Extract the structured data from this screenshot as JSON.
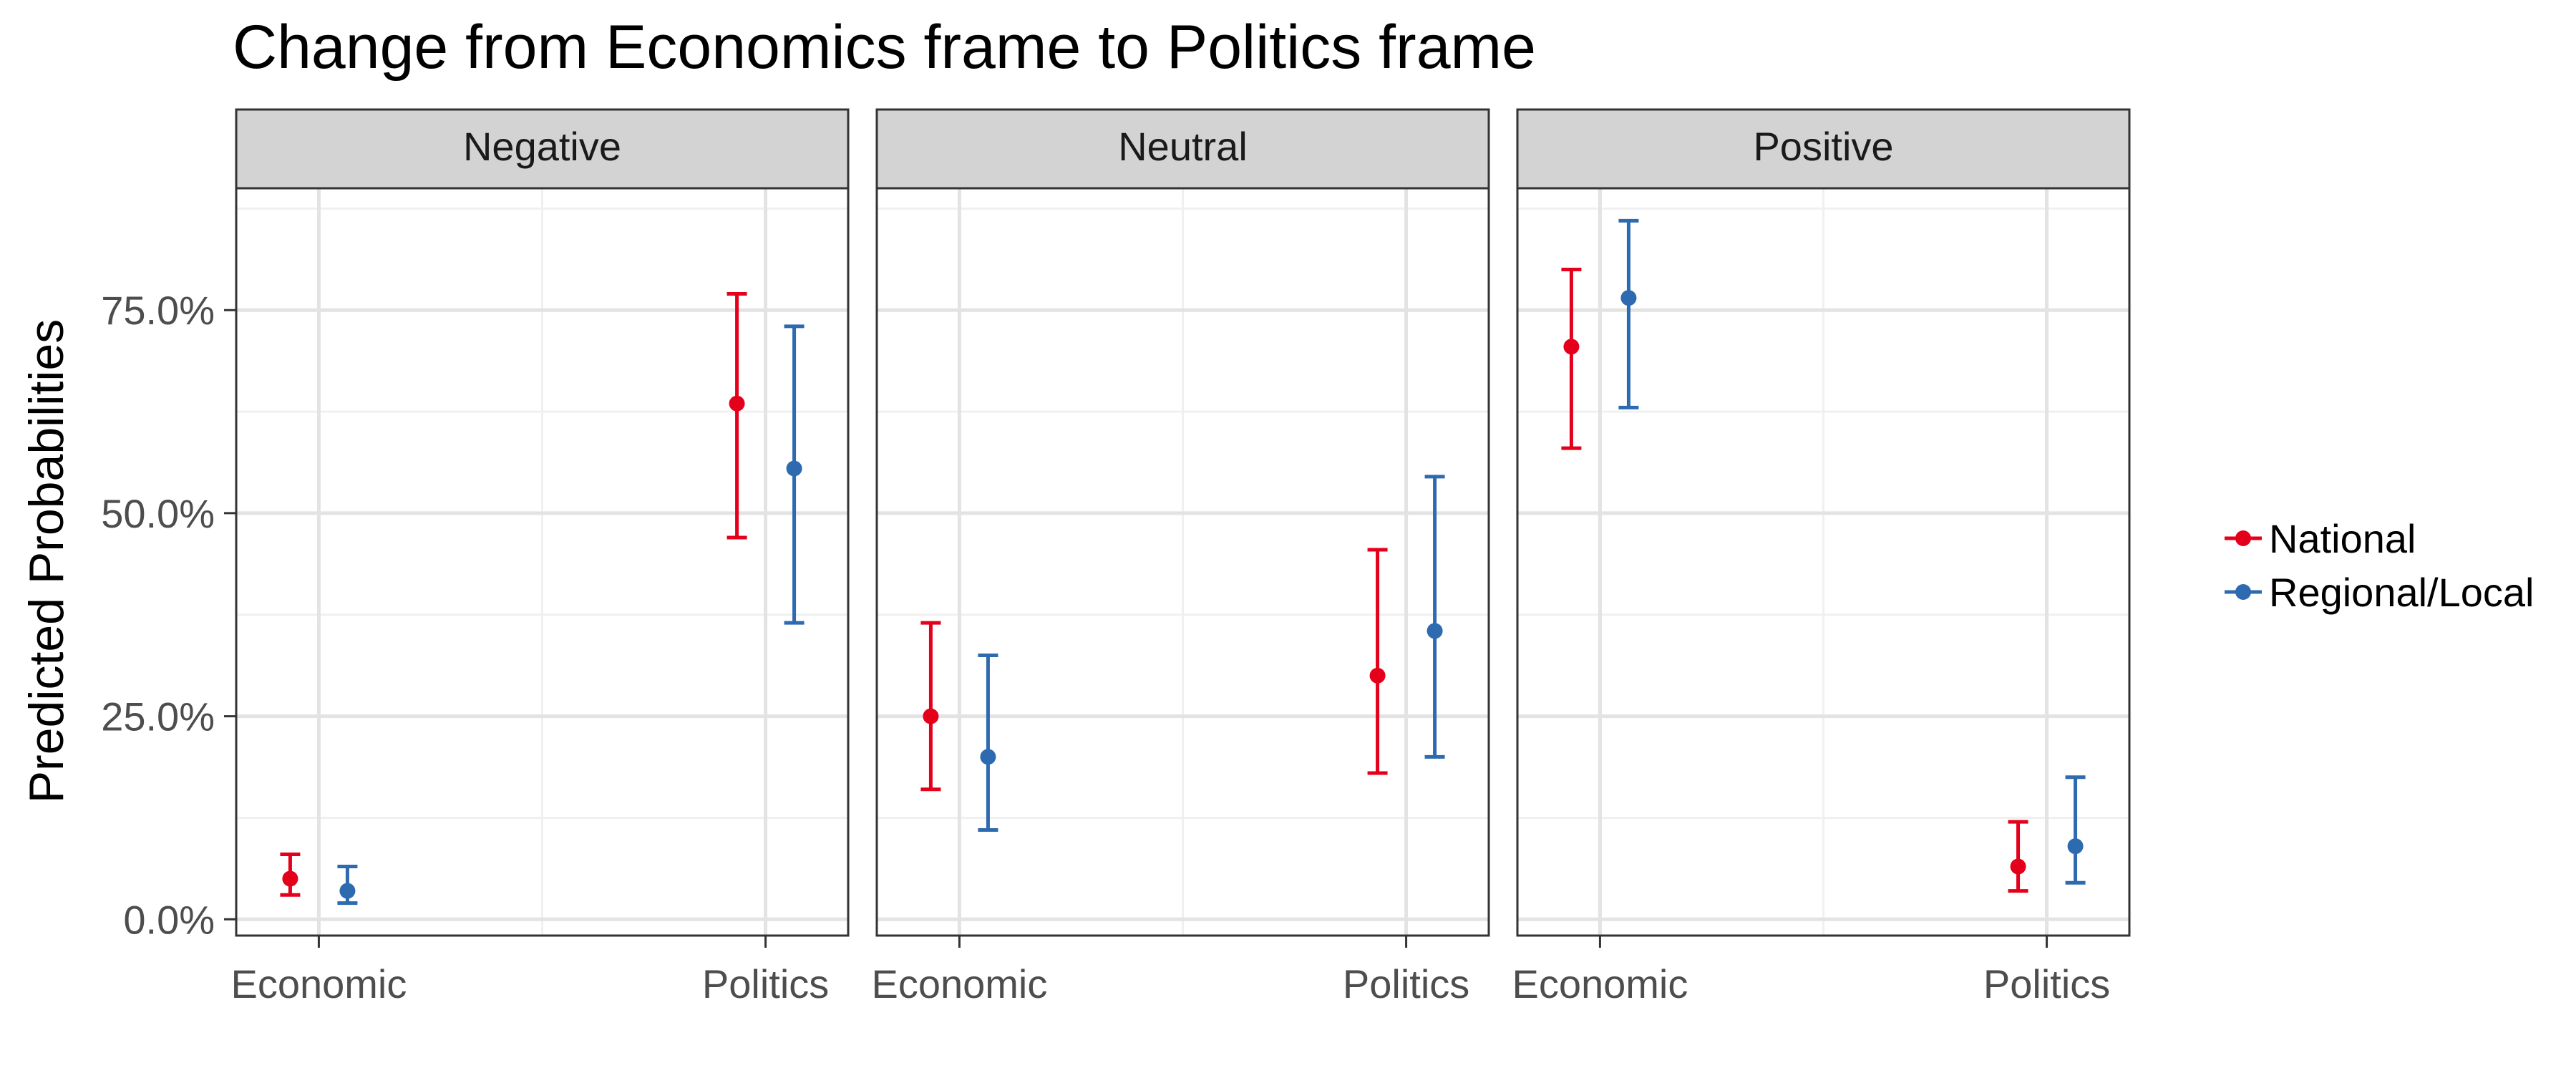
{
  "chart_data": {
    "type": "scatter",
    "title": "Change from Economics frame to Politics frame",
    "ylabel": "Predicted Probabilities",
    "xlabel": "",
    "x_categories": [
      "Economic",
      "Politics"
    ],
    "ylim": [
      -0.02,
      0.9
    ],
    "y_ticks": [
      0,
      0.25,
      0.5,
      0.75
    ],
    "y_tick_labels": [
      "0.0%",
      "25.0%",
      "50.0%",
      "75.0%"
    ],
    "grid": true,
    "legend_position": "right",
    "panels": [
      {
        "label": "Negative",
        "series": [
          {
            "name": "National",
            "color": "#E4001B",
            "points": [
              {
                "x": "Economic",
                "y": 0.05,
                "lower": 0.03,
                "upper": 0.08
              },
              {
                "x": "Politics",
                "y": 0.635,
                "lower": 0.47,
                "upper": 0.77
              }
            ]
          },
          {
            "name": "Regional/Local",
            "color": "#2D6AAF",
            "points": [
              {
                "x": "Economic",
                "y": 0.035,
                "lower": 0.02,
                "upper": 0.065
              },
              {
                "x": "Politics",
                "y": 0.555,
                "lower": 0.365,
                "upper": 0.73
              }
            ]
          }
        ]
      },
      {
        "label": "Neutral",
        "series": [
          {
            "name": "National",
            "color": "#E4001B",
            "points": [
              {
                "x": "Economic",
                "y": 0.25,
                "lower": 0.16,
                "upper": 0.365
              },
              {
                "x": "Politics",
                "y": 0.3,
                "lower": 0.18,
                "upper": 0.455
              }
            ]
          },
          {
            "name": "Regional/Local",
            "color": "#2D6AAF",
            "points": [
              {
                "x": "Economic",
                "y": 0.2,
                "lower": 0.11,
                "upper": 0.325
              },
              {
                "x": "Politics",
                "y": 0.355,
                "lower": 0.2,
                "upper": 0.545
              }
            ]
          }
        ]
      },
      {
        "label": "Positive",
        "series": [
          {
            "name": "National",
            "color": "#E4001B",
            "points": [
              {
                "x": "Economic",
                "y": 0.705,
                "lower": 0.58,
                "upper": 0.8
              },
              {
                "x": "Politics",
                "y": 0.065,
                "lower": 0.035,
                "upper": 0.12
              }
            ]
          },
          {
            "name": "Regional/Local",
            "color": "#2D6AAF",
            "points": [
              {
                "x": "Economic",
                "y": 0.765,
                "lower": 0.63,
                "upper": 0.86
              },
              {
                "x": "Politics",
                "y": 0.09,
                "lower": 0.045,
                "upper": 0.175
              }
            ]
          }
        ]
      }
    ],
    "legend": [
      {
        "name": "National",
        "color": "#E4001B"
      },
      {
        "name": "Regional/Local",
        "color": "#2D6AAF"
      }
    ]
  }
}
